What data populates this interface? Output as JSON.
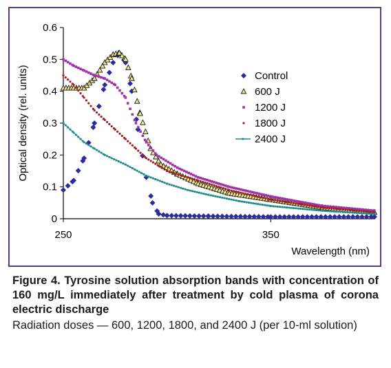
{
  "chart_data": {
    "type": "scatter",
    "xlabel": "Wavelength (nm)",
    "ylabel": "Optical density (rel. units)",
    "xlim": [
      250,
      400
    ],
    "ylim": [
      0,
      0.6
    ],
    "xticks": [
      "250",
      "350"
    ],
    "yticks": [
      "0",
      "0.1",
      "0.2",
      "0.3",
      "0.4",
      "0.5",
      "0.6"
    ],
    "legend_position": "right",
    "series": [
      {
        "name": "Control",
        "color": "#2c2c9c",
        "marker": "diamond",
        "points": [
          [
            250,
            0.09
          ],
          [
            255,
            0.12
          ],
          [
            260,
            0.19
          ],
          [
            265,
            0.3
          ],
          [
            270,
            0.42
          ],
          [
            274,
            0.49
          ],
          [
            277,
            0.52
          ],
          [
            280,
            0.49
          ],
          [
            283,
            0.4
          ],
          [
            286,
            0.28
          ],
          [
            290,
            0.13
          ],
          [
            293,
            0.05
          ],
          [
            296,
            0.015
          ],
          [
            300,
            0.01
          ],
          [
            320,
            0.008
          ],
          [
            350,
            0.006
          ],
          [
            400,
            0.006
          ]
        ]
      },
      {
        "name": "600 J",
        "color": "#1a1a1a",
        "marker": "triangle",
        "points": [
          [
            250,
            0.41
          ],
          [
            255,
            0.41
          ],
          [
            260,
            0.41
          ],
          [
            265,
            0.44
          ],
          [
            270,
            0.49
          ],
          [
            274,
            0.515
          ],
          [
            277,
            0.52
          ],
          [
            280,
            0.5
          ],
          [
            283,
            0.44
          ],
          [
            287,
            0.33
          ],
          [
            292,
            0.22
          ],
          [
            297,
            0.17
          ],
          [
            305,
            0.14
          ],
          [
            315,
            0.11
          ],
          [
            330,
            0.08
          ],
          [
            350,
            0.06
          ],
          [
            375,
            0.035
          ],
          [
            400,
            0.02
          ]
        ]
      },
      {
        "name": "1200 J",
        "color": "#a033a8",
        "marker": "cross",
        "points": [
          [
            250,
            0.5
          ],
          [
            255,
            0.48
          ],
          [
            260,
            0.465
          ],
          [
            265,
            0.45
          ],
          [
            270,
            0.44
          ],
          [
            275,
            0.42
          ],
          [
            280,
            0.38
          ],
          [
            285,
            0.3
          ],
          [
            290,
            0.24
          ],
          [
            295,
            0.2
          ],
          [
            305,
            0.16
          ],
          [
            315,
            0.13
          ],
          [
            330,
            0.1
          ],
          [
            350,
            0.07
          ],
          [
            375,
            0.04
          ],
          [
            400,
            0.025
          ]
        ]
      },
      {
        "name": "1800 J",
        "color": "#a02020",
        "marker": "dot",
        "points": [
          [
            250,
            0.45
          ],
          [
            255,
            0.42
          ],
          [
            260,
            0.38
          ],
          [
            265,
            0.34
          ],
          [
            270,
            0.31
          ],
          [
            275,
            0.28
          ],
          [
            280,
            0.25
          ],
          [
            285,
            0.22
          ],
          [
            290,
            0.19
          ],
          [
            300,
            0.15
          ],
          [
            315,
            0.12
          ],
          [
            330,
            0.09
          ],
          [
            350,
            0.06
          ],
          [
            375,
            0.035
          ],
          [
            400,
            0.02
          ]
        ]
      },
      {
        "name": "2400 J",
        "color": "#1f8a8a",
        "marker": "line-dot",
        "points": [
          [
            250,
            0.3
          ],
          [
            255,
            0.27
          ],
          [
            260,
            0.24
          ],
          [
            265,
            0.22
          ],
          [
            270,
            0.2
          ],
          [
            280,
            0.17
          ],
          [
            290,
            0.135
          ],
          [
            300,
            0.11
          ],
          [
            310,
            0.09
          ],
          [
            320,
            0.075
          ],
          [
            335,
            0.055
          ],
          [
            350,
            0.04
          ],
          [
            375,
            0.025
          ],
          [
            400,
            0.015
          ]
        ]
      }
    ]
  },
  "caption": {
    "title": "Figure 4. Tyrosine solution absorption bands with concentration of 160 mg/L immediately after treatment by cold plasma of corona electric discharge",
    "note": "Radiation doses — 600, 1200, 1800, and 2400 J (per 10-ml solution)"
  }
}
